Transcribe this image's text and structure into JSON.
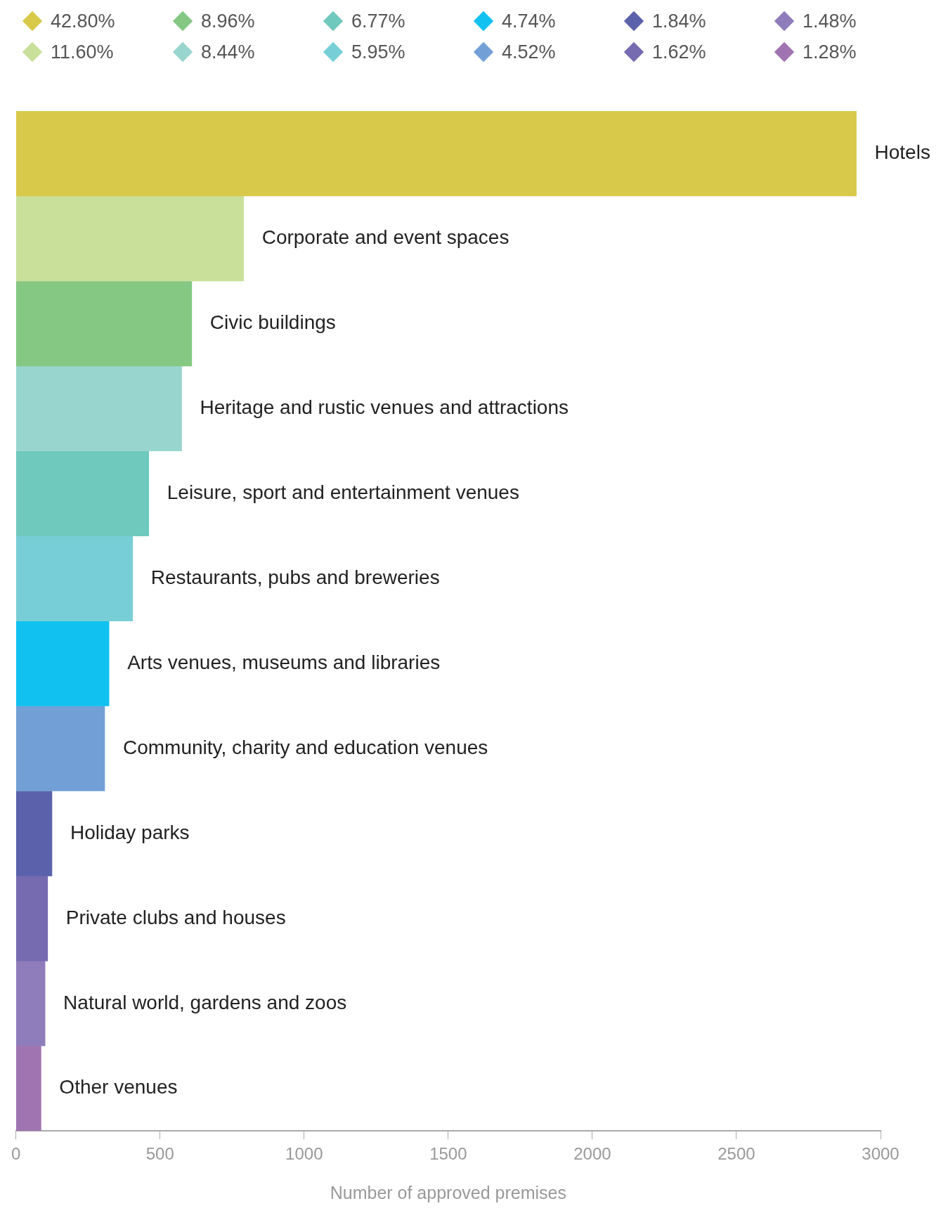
{
  "chart_data": {
    "type": "bar",
    "orientation": "horizontal",
    "stacked": true,
    "xlabel": "Number of approved premises",
    "categories": [
      "Hotels",
      "Corporate and event spaces",
      "Civic buildings",
      "Heritage and rustic venues and attractions",
      "Leisure, sport and entertainment venues",
      "Restaurants, pubs and breweries",
      "Arts venues, museums and libraries",
      "Community, charity and education venues",
      "Holiday parks",
      "Private clubs and houses",
      "Natural world, gardens and zoos",
      "Other venues"
    ],
    "series": [
      {
        "name": "42.80%",
        "color": "#d9c94b",
        "values": [
          2916,
          null,
          null,
          null,
          null,
          null,
          null,
          null,
          null,
          null,
          null,
          null
        ]
      },
      {
        "name": "11.60%",
        "color": "#c9e09b",
        "values": [
          null,
          790,
          null,
          null,
          null,
          null,
          null,
          null,
          null,
          null,
          null,
          null
        ]
      },
      {
        "name": "8.96%",
        "color": "#84c883",
        "values": [
          null,
          null,
          610,
          null,
          null,
          null,
          null,
          null,
          null,
          null,
          null,
          null
        ]
      },
      {
        "name": "8.44%",
        "color": "#99d5cf",
        "values": [
          null,
          null,
          null,
          575,
          null,
          null,
          null,
          null,
          null,
          null,
          null,
          null
        ]
      },
      {
        "name": "6.77%",
        "color": "#6fc9bd",
        "values": [
          null,
          null,
          null,
          null,
          461,
          null,
          null,
          null,
          null,
          null,
          null,
          null
        ]
      },
      {
        "name": "5.95%",
        "color": "#77ced6",
        "values": [
          null,
          null,
          null,
          null,
          null,
          405,
          null,
          null,
          null,
          null,
          null,
          null
        ]
      },
      {
        "name": "4.74%",
        "color": "#11c1f0",
        "values": [
          null,
          null,
          null,
          null,
          null,
          null,
          323,
          null,
          null,
          null,
          null,
          null
        ]
      },
      {
        "name": "4.52%",
        "color": "#72a0d6",
        "values": [
          null,
          null,
          null,
          null,
          null,
          null,
          null,
          308,
          null,
          null,
          null,
          null
        ]
      },
      {
        "name": "1.84%",
        "color": "#5b62ab",
        "values": [
          null,
          null,
          null,
          null,
          null,
          null,
          null,
          null,
          125,
          null,
          null,
          null
        ]
      },
      {
        "name": "1.62%",
        "color": "#766bb0",
        "values": [
          null,
          null,
          null,
          null,
          null,
          null,
          null,
          null,
          null,
          110,
          null,
          null
        ]
      },
      {
        "name": "1.48%",
        "color": "#8f7cbb",
        "values": [
          null,
          null,
          null,
          null,
          null,
          null,
          null,
          null,
          null,
          null,
          101,
          null
        ]
      },
      {
        "name": "1.28%",
        "color": "#a074b1",
        "values": [
          null,
          null,
          null,
          null,
          null,
          null,
          null,
          null,
          null,
          null,
          null,
          87
        ]
      }
    ],
    "xlim": [
      0,
      3000
    ],
    "xticks": [
      0,
      500,
      1000,
      1500,
      2000,
      2500,
      3000
    ],
    "grid": false,
    "legend": "top"
  }
}
